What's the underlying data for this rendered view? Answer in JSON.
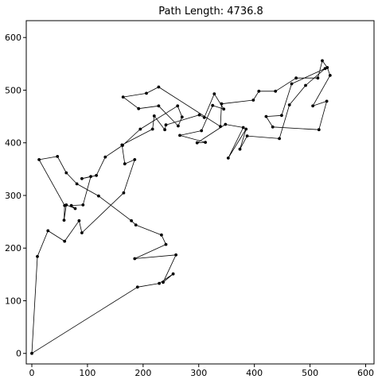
{
  "chart_data": {
    "type": "line",
    "title": "Path Length: 4736.8",
    "xlabel": "",
    "ylabel": "",
    "xlim": [
      -10,
      615
    ],
    "ylim": [
      -20,
      632
    ],
    "xticks": [
      0,
      100,
      200,
      300,
      400,
      500,
      600
    ],
    "yticks": [
      0,
      100,
      200,
      300,
      400,
      500,
      600
    ],
    "xtick_labels": [
      "0",
      "100",
      "200",
      "300",
      "400",
      "500",
      "600"
    ],
    "ytick_labels": [
      "0",
      "100",
      "200",
      "300",
      "400",
      "500",
      "600"
    ],
    "grid": false,
    "legend": "none",
    "line_color": "#000000",
    "marker": "point",
    "series": [
      {
        "x": [
          0,
          10,
          29,
          59,
          85,
          90,
          165,
          185,
          167,
          162,
          217,
          220,
          239,
          241,
          301,
          310,
          328,
          345,
          325,
          305,
          266,
          312,
          297,
          348,
          380,
          353,
          385,
          374,
          387,
          445,
          463,
          492,
          527,
          467,
          449,
          421,
          433,
          516,
          530,
          505,
          536,
          531,
          522,
          514,
          475,
          438,
          408,
          398,
          341,
          339,
          228,
          206,
          164,
          192,
          228,
          263,
          270,
          262,
          195,
          163,
          132,
          116,
          90,
          106,
          92,
          71,
          78,
          62,
          58,
          59,
          13,
          46,
          62,
          81,
          120,
          179,
          187,
          233,
          241,
          185,
          259,
          236,
          254,
          229,
          190
        ],
        "y": [
          0,
          184,
          233,
          213,
          252,
          229,
          305,
          368,
          360,
          396,
          426,
          451,
          425,
          434,
          453,
          448,
          493,
          464,
          471,
          423,
          414,
          401,
          400,
          435,
          429,
          371,
          426,
          388,
          413,
          408,
          472,
          509,
          541,
          512,
          452,
          450,
          430,
          425,
          479,
          470,
          528,
          543,
          556,
          523,
          523,
          498,
          498,
          481,
          474,
          431,
          506,
          494,
          487,
          465,
          470,
          432,
          449,
          470,
          426,
          395,
          373,
          338,
          332,
          336,
          282,
          281,
          275,
          282,
          253,
          281,
          368,
          374,
          343,
          322,
          299,
          252,
          244,
          225,
          207,
          180,
          187,
          135,
          151,
          133,
          126
        ]
      }
    ]
  }
}
